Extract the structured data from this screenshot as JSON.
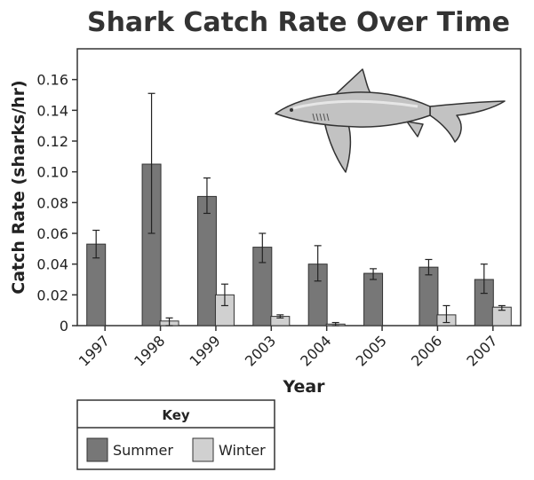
{
  "chart_data": {
    "type": "bar",
    "title": "Shark Catch Rate Over Time",
    "xlabel": "Year",
    "ylabel": "Catch Rate (sharks/hr)",
    "categories": [
      "1997",
      "1998",
      "1999",
      "2003",
      "2004",
      "2005",
      "2006",
      "2007"
    ],
    "ylim": [
      0,
      0.18
    ],
    "yticks": [
      "0",
      "0.02",
      "0.04",
      "0.06",
      "0.08",
      "0.10",
      "0.12",
      "0.14",
      "0.16"
    ],
    "grid": false,
    "series": [
      {
        "name": "Summer",
        "color": "#777777",
        "values": [
          0.053,
          0.105,
          0.084,
          0.051,
          0.04,
          0.034,
          0.038,
          0.03
        ],
        "error": [
          [
            0.044,
            0.062
          ],
          [
            0.06,
            0.151
          ],
          [
            0.073,
            0.096
          ],
          [
            0.041,
            0.06
          ],
          [
            0.029,
            0.052
          ],
          [
            0.03,
            0.037
          ],
          [
            0.033,
            0.043
          ],
          [
            0.021,
            0.04
          ]
        ]
      },
      {
        "name": "Winter",
        "color": "#d0d0d0",
        "values": [
          null,
          0.003,
          0.02,
          0.006,
          0.001,
          null,
          0.007,
          0.012
        ],
        "error": [
          null,
          [
            0.0,
            0.005
          ],
          [
            0.013,
            0.027
          ],
          [
            0.005,
            0.007
          ],
          [
            0.0,
            0.002
          ],
          null,
          [
            0.002,
            0.013
          ],
          [
            0.01,
            0.013
          ]
        ]
      }
    ],
    "legend": {
      "title": "Key",
      "position": "bottom-left",
      "entries": [
        "Summer",
        "Winter"
      ]
    },
    "image": "shark-illustration"
  }
}
